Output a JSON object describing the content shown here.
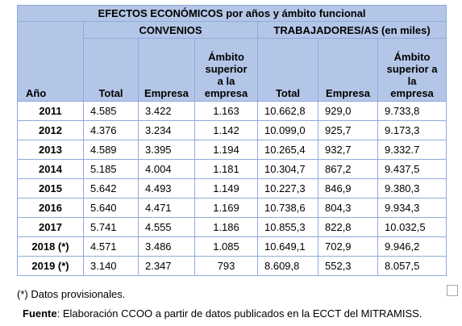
{
  "table": {
    "title": "EFECTOS ECONÓMICOS por años y ámbito funcional",
    "group_convenios": "CONVENIOS",
    "group_trabajadores": "TRABAJADORES/AS (en miles)",
    "col_year": "Año",
    "col_total": "Total",
    "col_empresa": "Empresa",
    "col_ambito": "Ámbito superior a la empresa",
    "col_ambito_l1": "Ámbito",
    "col_ambito_l2": "superior",
    "col_ambito_l3": "a la",
    "col_ambito_l4": "empresa",
    "col_total2": "Total",
    "col_empresa2": "Empresa",
    "col_ambito2_l1": "Ámbito",
    "col_ambito2_l2": "superior a",
    "col_ambito2_l3": "la",
    "col_ambito2_l4": "empresa",
    "rows": [
      {
        "year": "2011",
        "c_total": "4.585",
        "c_emp": "3.422",
        "c_amb": "1.163",
        "t_total": "10.662,8",
        "t_emp": "929,0",
        "t_amb": "9.733,8"
      },
      {
        "year": "2012",
        "c_total": "4.376",
        "c_emp": "3.234",
        "c_amb": "1.142",
        "t_total": "10.099,0",
        "t_emp": "925,7",
        "t_amb": "9.173,3"
      },
      {
        "year": "2013",
        "c_total": "4.589",
        "c_emp": "3.395",
        "c_amb": "1.194",
        "t_total": "10.265,4",
        "t_emp": "932,7",
        "t_amb": "9.332.7"
      },
      {
        "year": "2014",
        "c_total": "5.185",
        "c_emp": "4.004",
        "c_amb": "1.181",
        "t_total": "10.304,7",
        "t_emp": "867,2",
        "t_amb": "9.437,5"
      },
      {
        "year": "2015",
        "c_total": "5.642",
        "c_emp": "4.493",
        "c_amb": "1.149",
        "t_total": "10.227,3",
        "t_emp": "846,9",
        "t_amb": "9.380,3"
      },
      {
        "year": "2016",
        "c_total": "5.640",
        "c_emp": "4.471",
        "c_amb": "1.169",
        "t_total": "10.738,6",
        "t_emp": "804,3",
        "t_amb": "9.934,3"
      },
      {
        "year": "2017",
        "c_total": "5.741",
        "c_emp": "4.555",
        "c_amb": "1.186",
        "t_total": "10.855,3",
        "t_emp": "822,8",
        "t_amb": "10.032,5"
      },
      {
        "year": "2018 (*)",
        "c_total": "4.571",
        "c_emp": "3.486",
        "c_amb": "1.085",
        "t_total": "10.649,1",
        "t_emp": "702,9",
        "t_amb": "9.946,2"
      },
      {
        "year": "2019 (*)",
        "c_total": "3.140",
        "c_emp": "2.347",
        "c_amb": "793",
        "t_total": "8.609,8",
        "t_emp": "552,3",
        "t_amb": "8.057,5"
      }
    ]
  },
  "footnote": "(*) Datos provisionales.",
  "source_label": "Fuente",
  "source_text": ": Elaboración CCOO  a partir de datos publicados en la ECCT del MITRAMISS."
}
